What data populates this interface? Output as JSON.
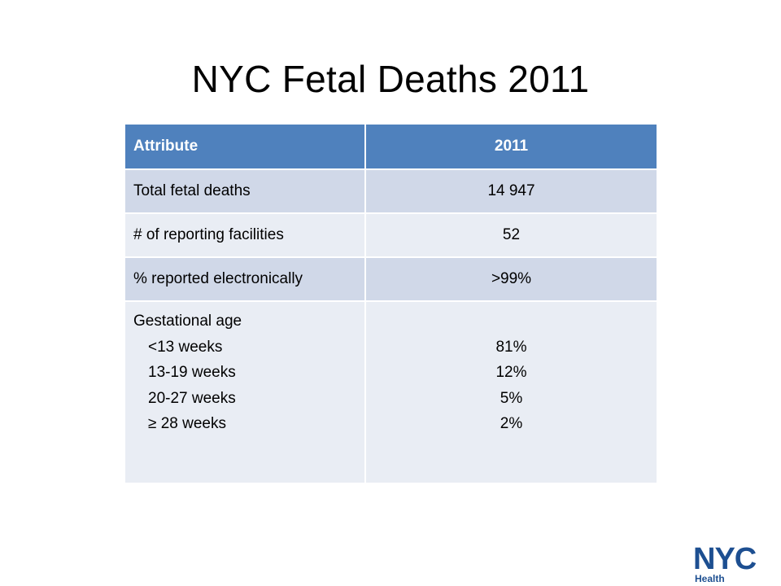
{
  "slide": {
    "title": "NYC Fetal Deaths 2011"
  },
  "table": {
    "headers": [
      "Attribute",
      "2011"
    ],
    "rows": [
      {
        "label": "Total fetal deaths",
        "value": "14 947"
      },
      {
        "label": "# of reporting facilities",
        "value": "52"
      },
      {
        "label": "% reported electronically",
        "value": ">99%"
      }
    ],
    "gestational": {
      "label": "Gestational age",
      "items": [
        {
          "label": "<13 weeks",
          "value": "81%"
        },
        {
          "label": "13-19 weeks",
          "value": "12%"
        },
        {
          "label": "20-27 weeks",
          "value": "5%"
        },
        {
          "label": "≥ 28 weeks",
          "value": "2%"
        }
      ]
    }
  },
  "logo": {
    "wordmark": "NYC",
    "subtitle": "Health",
    "color": "#1d4f91",
    "accent": "#7fa3cf"
  },
  "colors": {
    "header_bg": "#4f81bd",
    "row_dark": "#d0d8e8",
    "row_light": "#e9edf4"
  }
}
